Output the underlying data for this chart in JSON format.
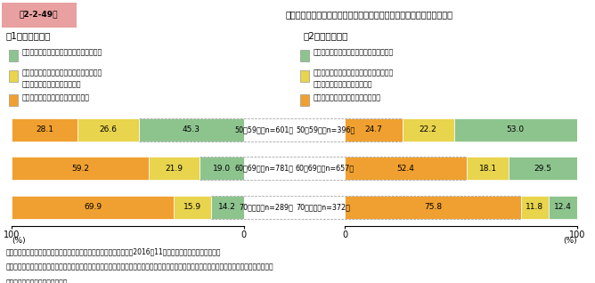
{
  "title_box_text": "第2-2-49図",
  "title_main": "経営者の年代別に見た、後継者の選定状況（小規模法人・個人事業者）",
  "subtitle_left": "（1）小規模法人",
  "subtitle_right": "（2）個人事業者",
  "colors": {
    "green": "#8dc48e",
    "yellow": "#e8d44d",
    "orange": "#f0a030"
  },
  "legend_labels_line1": [
    "決まっている（後継者の了承を得ている）",
    "候補者はいるが、本人の了承を得ていない",
    "候補者もいない、または未定である"
  ],
  "legend_labels_line2": [
    "",
    "（候補者が複数の場合を含む）",
    ""
  ],
  "left_data": {
    "labels": [
      "50～59歳（n=601）",
      "60～69歳（n=781）",
      "70歳以上（n=289）"
    ],
    "green": [
      45.3,
      19.0,
      14.2
    ],
    "yellow": [
      26.6,
      21.9,
      15.9
    ],
    "orange": [
      28.1,
      59.2,
      69.9
    ]
  },
  "right_data": {
    "labels": [
      "50～59歳（n=396）",
      "60～69歳（n=657）",
      "70歳以上（n=372）"
    ],
    "orange": [
      24.7,
      52.4,
      75.8
    ],
    "yellow": [
      22.2,
      18.1,
      11.8
    ],
    "green": [
      53.0,
      29.5,
      12.4
    ]
  },
  "footnote1": "資料：中小企業庁委託「企業経営の継続に関するアンケート調査」（2016年11月、（株）東京商工リサーチ）",
  "footnote2": "（注）事業承継の意向について、「誰かに引き継ぎたいと考えている（事業の譲渡や売却も含む）」、「経営の引継ぎについては未定である」と",
  "footnote3": "　　回答した者を集計している。",
  "header_bg": "#eeeeee",
  "title_box_bg": "#e8a0a0"
}
